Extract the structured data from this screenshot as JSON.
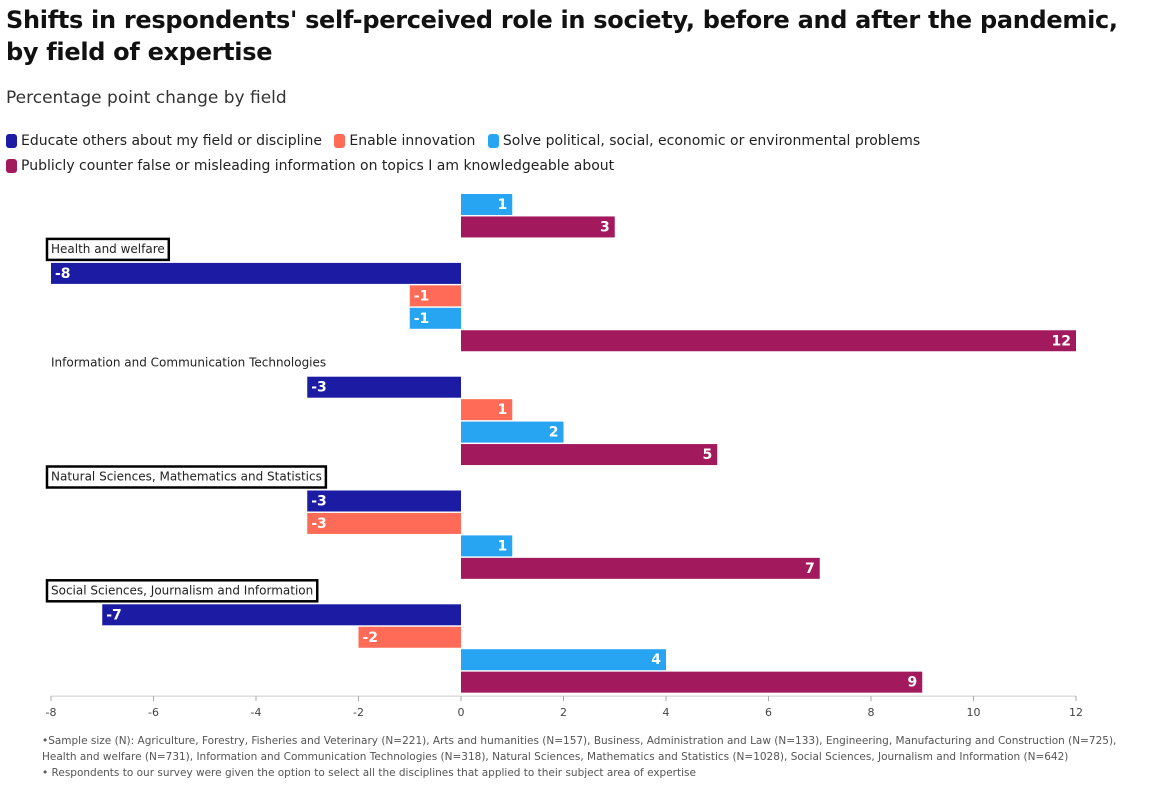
{
  "title": "Shifts in respondents' self-perceived role in society, before and after the pandemic, by field of expertise",
  "subtitle": "Percentage point change by field",
  "legend": [
    {
      "name": "Educate others about my field or discipline",
      "color": "#1b1ba3"
    },
    {
      "name": "Enable innovation",
      "color": "#ff6b57"
    },
    {
      "name": "Solve political, social, economic or environmental problems",
      "color": "#27a4f2"
    },
    {
      "name": "Publicly counter false or misleading information on topics I am knowledgeable about",
      "color": "#a3195e"
    }
  ],
  "footnotes": [
    "•Sample size (N): Agriculture, Forestry, Fisheries and Veterinary (N=221), Arts and humanities (N=157), Business, Administration and Law (N=133), Engineering, Manufacturing and Construction (N=725), Health and welfare (N=731), Information and Communication Technologies (N=318), Natural Sciences, Mathematics and Statistics (N=1028), Social Sciences, Journalism and Information (N=642)",
    "• Respondents to our survey were given the option to select all the disciplines that applied to their subject area of expertise"
  ],
  "chart_data": {
    "type": "bar",
    "orientation": "horizontal",
    "xlim": [
      -8,
      12
    ],
    "xticks": [
      -8,
      -6,
      -4,
      -2,
      0,
      2,
      4,
      6,
      8,
      10,
      12
    ],
    "series_colors": [
      "#1b1ba3",
      "#ff6b57",
      "#27a4f2",
      "#a3195e"
    ],
    "series_names": [
      "Educate others about my field or discipline",
      "Enable innovation",
      "Solve political, social, economic or environmental problems",
      "Publicly counter false or misleading information on topics I am knowledgeable about"
    ],
    "groups": [
      {
        "label": "",
        "boxed": false,
        "bars": [
          {
            "series": 2,
            "value": 1
          },
          {
            "series": 3,
            "value": 3
          }
        ]
      },
      {
        "label": "Health and welfare",
        "boxed": true,
        "bars": [
          {
            "series": 0,
            "value": -8
          },
          {
            "series": 1,
            "value": -1
          },
          {
            "series": 2,
            "value": -1
          },
          {
            "series": 3,
            "value": 12
          }
        ]
      },
      {
        "label": "Information and Communication Technologies",
        "boxed": false,
        "bars": [
          {
            "series": 0,
            "value": -3
          },
          {
            "series": 1,
            "value": 1
          },
          {
            "series": 2,
            "value": 2
          },
          {
            "series": 3,
            "value": 5
          }
        ]
      },
      {
        "label": "Natural Sciences, Mathematics and Statistics",
        "boxed": true,
        "bars": [
          {
            "series": 0,
            "value": -3
          },
          {
            "series": 1,
            "value": -3
          },
          {
            "series": 2,
            "value": 1
          },
          {
            "series": 3,
            "value": 7
          }
        ]
      },
      {
        "label": "Social Sciences, Journalism and Information",
        "boxed": true,
        "bars": [
          {
            "series": 0,
            "value": -7
          },
          {
            "series": 1,
            "value": -2
          },
          {
            "series": 2,
            "value": 4
          },
          {
            "series": 3,
            "value": 9
          }
        ]
      }
    ]
  }
}
